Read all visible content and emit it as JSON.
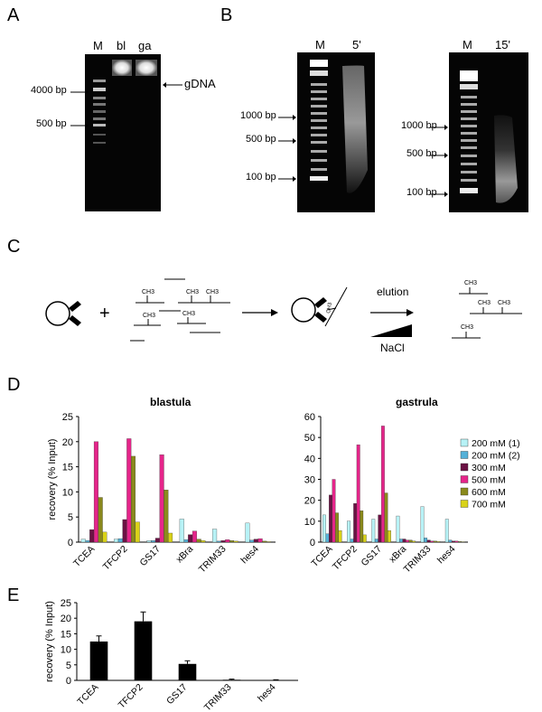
{
  "panels": {
    "a": "A",
    "b": "B",
    "c": "C",
    "d": "D",
    "e": "E"
  },
  "panelA": {
    "lanes": [
      "M",
      "bl",
      "ga"
    ],
    "markers": [
      "4000 bp",
      "500 bp"
    ],
    "annotation": "gDNA"
  },
  "panelB": {
    "left": {
      "lanes": [
        "M",
        "5'"
      ],
      "markers": [
        "1000 bp",
        "500 bp",
        "100 bp"
      ]
    },
    "right": {
      "lanes": [
        "M",
        "15'"
      ],
      "markers": [
        "1000 bp",
        "500 bp",
        "100 bp"
      ]
    }
  },
  "panelC": {
    "elution": "elution",
    "nacl": "NaCl",
    "plus": "+",
    "ch3": "CH3"
  },
  "colors": {
    "s200a": "#b7f2f6",
    "s200b": "#55b1d8",
    "s300": "#6b1244",
    "s500": "#e5258a",
    "s600": "#8a8a1c",
    "s700": "#d9d218"
  },
  "chart_data": [
    {
      "type": "bar",
      "title": "blastula",
      "ylabel": "recovery (% Input)",
      "ylim": [
        0,
        25
      ],
      "yticks": [
        0,
        5,
        10,
        15,
        20,
        25
      ],
      "categories": [
        "TCEA",
        "TFCP2",
        "GS17",
        "xBra",
        "TRIM33",
        "hes4"
      ],
      "series": [
        {
          "name": "200 mM (1)",
          "values": [
            0.6,
            0.6,
            0.3,
            4.6,
            2.6,
            3.8
          ]
        },
        {
          "name": "200 mM (2)",
          "values": [
            0.3,
            0.7,
            0.3,
            0.5,
            0.2,
            0.4
          ]
        },
        {
          "name": "300 mM",
          "values": [
            2.5,
            4.5,
            0.8,
            1.5,
            0.3,
            0.6
          ]
        },
        {
          "name": "500 mM",
          "values": [
            20,
            20.6,
            17.4,
            2.2,
            0.5,
            0.7
          ]
        },
        {
          "name": "600 mM",
          "values": [
            8.9,
            17.1,
            10.4,
            0.6,
            0.3,
            0.2
          ]
        },
        {
          "name": "700 mM",
          "values": [
            2.0,
            4.0,
            1.8,
            0.3,
            0.2,
            0.1
          ]
        }
      ]
    },
    {
      "type": "bar",
      "title": "gastrula",
      "ylabel": "",
      "ylim": [
        0,
        60
      ],
      "yticks": [
        0,
        10,
        20,
        30,
        40,
        50,
        60
      ],
      "categories": [
        "TCEA",
        "TFCP2",
        "GS17",
        "xBra",
        "TRIM33",
        "hes4"
      ],
      "legend": [
        "200 mM (1)",
        "200 mM (2)",
        "300 mM",
        "500 mM",
        "600 mM",
        "700 mM"
      ],
      "legend_position": "top-right",
      "series": [
        {
          "name": "200 mM (1)",
          "values": [
            13,
            10,
            11,
            12.5,
            17,
            11
          ]
        },
        {
          "name": "200 mM (2)",
          "values": [
            4,
            1.5,
            1.5,
            1.5,
            2,
            1
          ]
        },
        {
          "name": "300 mM",
          "values": [
            22.5,
            18.5,
            13,
            1.5,
            1,
            0.5
          ]
        },
        {
          "name": "500 mM",
          "values": [
            30,
            46.5,
            55.5,
            1,
            0.5,
            0.5
          ]
        },
        {
          "name": "600 mM",
          "values": [
            14,
            15,
            23.5,
            1,
            0.5,
            0.3
          ]
        },
        {
          "name": "700 mM",
          "values": [
            5.5,
            3.5,
            5.5,
            0.5,
            0.3,
            0.2
          ]
        }
      ]
    },
    {
      "type": "bar",
      "title": "",
      "ylabel": "recovery (% Input)",
      "ylim": [
        0,
        25
      ],
      "yticks": [
        0,
        5,
        10,
        15,
        20,
        25
      ],
      "categories": [
        "TCEA",
        "TFCP2",
        "GS17",
        "TRIM33",
        "hes4"
      ],
      "values": [
        12.5,
        19,
        5.3,
        0.2,
        0.1
      ],
      "errors": [
        1.8,
        3,
        1,
        0.2,
        0.1
      ]
    }
  ]
}
